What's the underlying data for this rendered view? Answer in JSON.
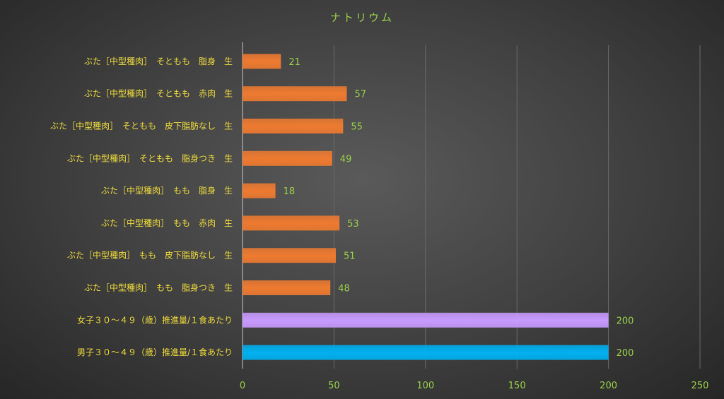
{
  "chart_data": {
    "type": "bar",
    "orientation": "horizontal",
    "title": "ナトリウム",
    "xlabel": "",
    "ylabel": "",
    "xlim": [
      0,
      250
    ],
    "xticks": [
      0,
      50,
      100,
      150,
      200,
      250
    ],
    "grid": true,
    "legend": "none",
    "categories": [
      "ぶた［中型種肉］　そともも　脂身　生",
      "ぶた［中型種肉］　そともも　赤肉　生",
      "ぶた［中型種肉］　そともも　皮下脂肪なし　生",
      "ぶた［中型種肉］　そともも　脂身つき　生",
      "ぶた［中型種肉］　もも　脂身　生",
      "ぶた［中型種肉］　もも　赤肉　生",
      "ぶた［中型種肉］　もも　皮下脂肪なし　生",
      "ぶた［中型種肉］　もも　脂身つき　生",
      "女子３０～４９（歳）推進量/１食あたり",
      "男子３０～４９（歳）推進量/１食あたり"
    ],
    "values": [
      21,
      57,
      55,
      49,
      18,
      53,
      51,
      48,
      200,
      200
    ],
    "colors": [
      "#ee7a30",
      "#ee7a30",
      "#ee7a30",
      "#ee7a30",
      "#ee7a30",
      "#ee7a30",
      "#ee7a30",
      "#ee7a30",
      "#c89aff",
      "#00b0f0"
    ]
  }
}
